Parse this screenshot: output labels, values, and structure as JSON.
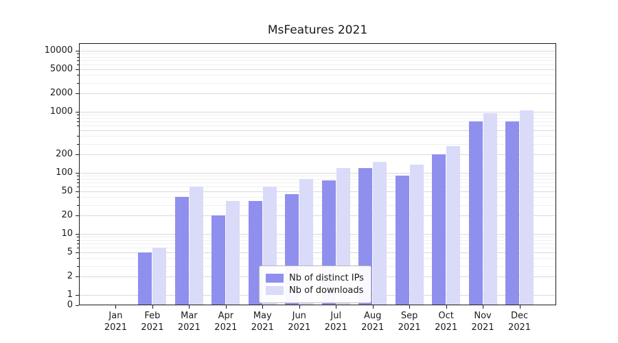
{
  "chart_data": {
    "type": "bar",
    "title": "MsFeatures 2021",
    "y_scale": "symlog",
    "grid": true,
    "legend_position": "lower center",
    "categories": [
      {
        "month": "Jan",
        "year": "2021"
      },
      {
        "month": "Feb",
        "year": "2021"
      },
      {
        "month": "Mar",
        "year": "2021"
      },
      {
        "month": "Apr",
        "year": "2021"
      },
      {
        "month": "May",
        "year": "2021"
      },
      {
        "month": "Jun",
        "year": "2021"
      },
      {
        "month": "Jul",
        "year": "2021"
      },
      {
        "month": "Aug",
        "year": "2021"
      },
      {
        "month": "Sep",
        "year": "2021"
      },
      {
        "month": "Oct",
        "year": "2021"
      },
      {
        "month": "Nov",
        "year": "2021"
      },
      {
        "month": "Dec",
        "year": "2021"
      }
    ],
    "series": [
      {
        "name": "Nb of distinct IPs",
        "color": "#8f8fee",
        "values": [
          0,
          5,
          40,
          20,
          35,
          45,
          75,
          120,
          90,
          200,
          700,
          700
        ]
      },
      {
        "name": "Nb of downloads",
        "color": "#dadaf9",
        "values": [
          0,
          6,
          60,
          35,
          60,
          80,
          120,
          150,
          135,
          275,
          950,
          1050
        ]
      }
    ],
    "y_ticks": [
      10000,
      5000,
      2000,
      1000,
      200,
      100,
      50,
      20,
      10,
      5,
      2,
      1,
      0
    ],
    "y_range": [
      0,
      10000
    ],
    "colors": {
      "grid_major": "#d9d9d9",
      "grid_minor": "#efefef",
      "frame": "#1a1a1a",
      "text": "#1a1a1a",
      "background": "#ffffff"
    }
  }
}
